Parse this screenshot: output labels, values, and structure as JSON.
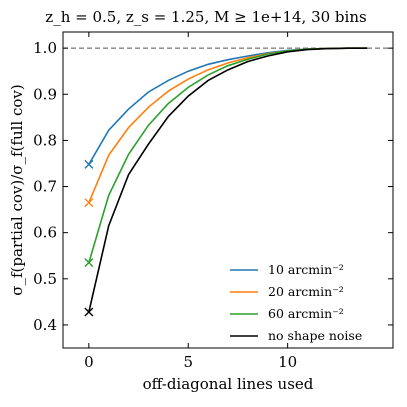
{
  "chart_data": {
    "type": "line",
    "title": "z_h = 0.5, z_s = 1.25, M ≥ 1e+14, 30 bins",
    "xlabel": "off-diagonal lines used",
    "ylabel": "σ_f(partial cov)/σ_f(full cov)",
    "xlim": [
      -1.3,
      15.3
    ],
    "ylim": [
      0.35,
      1.035
    ],
    "xticks": [
      0,
      5,
      10
    ],
    "yticks": [
      0.4,
      0.5,
      0.6,
      0.7,
      0.8,
      0.9,
      1.0
    ],
    "xtick_labels": [
      "0",
      "5",
      "10"
    ],
    "ytick_labels": [
      "0.4",
      "0.5",
      "0.6",
      "0.7",
      "0.8",
      "0.9",
      "1.0"
    ],
    "reference_line": {
      "y": 1.0,
      "style": "dashed",
      "color": "#555555"
    },
    "legend_position": "lower-right",
    "x": [
      0,
      1,
      2,
      3,
      4,
      5,
      6,
      7,
      8,
      9,
      10,
      11,
      12,
      13,
      14
    ],
    "series": [
      {
        "name": "10 arcmin⁻²",
        "color": "#1f77b4",
        "values": [
          0.748,
          0.822,
          0.868,
          0.905,
          0.93,
          0.95,
          0.965,
          0.975,
          0.983,
          0.99,
          0.995,
          0.998,
          0.999,
          1.0,
          1.0
        ]
      },
      {
        "name": "20 arcmin⁻²",
        "color": "#ff7f0e",
        "values": [
          0.665,
          0.768,
          0.828,
          0.872,
          0.907,
          0.933,
          0.953,
          0.968,
          0.979,
          0.988,
          0.994,
          0.998,
          0.999,
          1.0,
          1.0
        ]
      },
      {
        "name": "60 arcmin⁻²",
        "color": "#2ca02c",
        "values": [
          0.535,
          0.681,
          0.77,
          0.833,
          0.88,
          0.915,
          0.942,
          0.962,
          0.976,
          0.987,
          0.994,
          0.998,
          0.999,
          1.0,
          1.0
        ]
      },
      {
        "name": "no shape noise",
        "color": "#000000",
        "values": [
          0.428,
          0.615,
          0.726,
          0.792,
          0.852,
          0.896,
          0.93,
          0.953,
          0.971,
          0.983,
          0.992,
          0.997,
          0.999,
          1.0,
          1.0
        ]
      }
    ],
    "markers": {
      "x": 0,
      "shape": "x"
    }
  }
}
